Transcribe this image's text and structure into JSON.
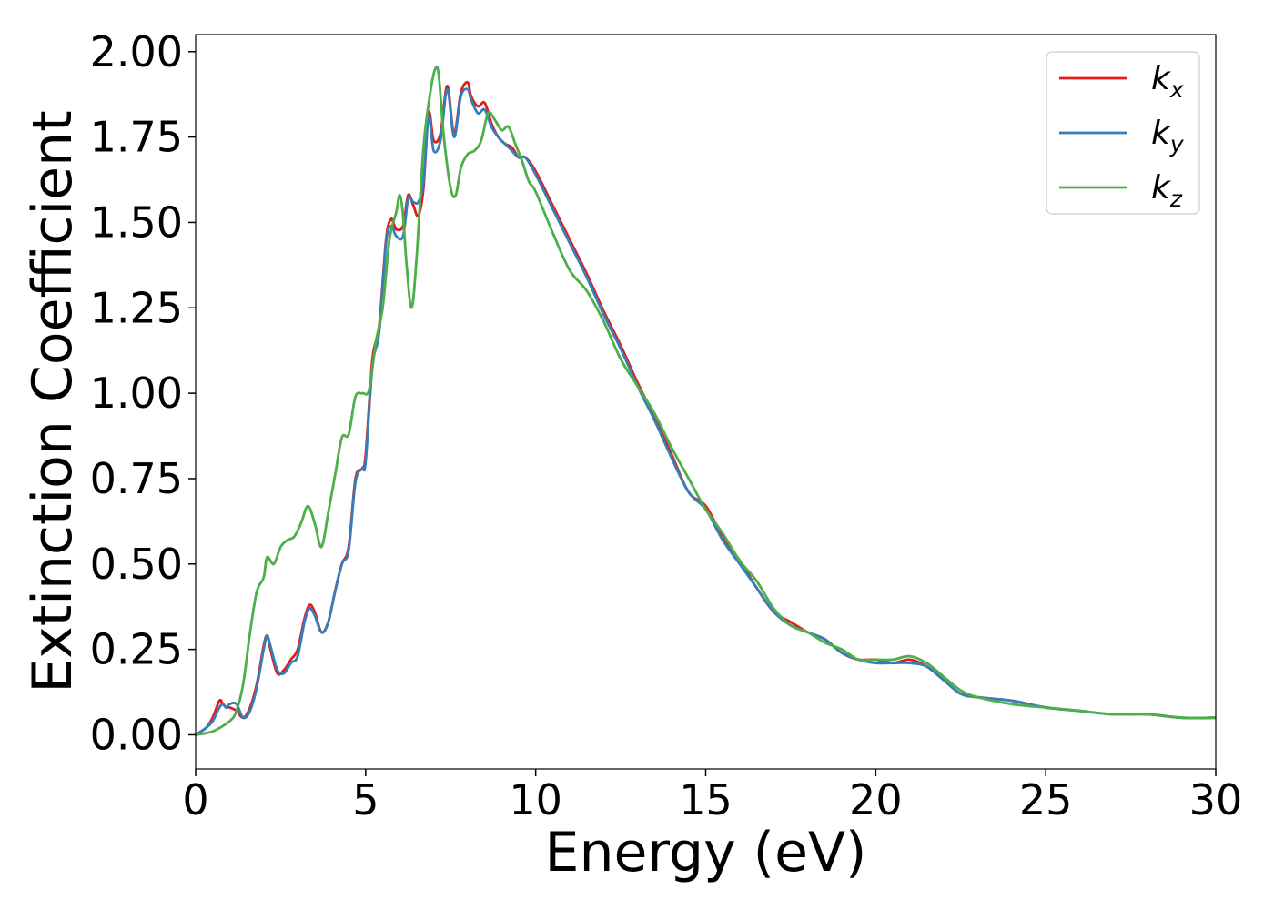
{
  "chart_data": {
    "type": "line",
    "title": "",
    "xlabel": "Energy (eV)",
    "ylabel": "Extinction Coefficient",
    "xlim": [
      0,
      30
    ],
    "ylim": [
      -0.1,
      2.05
    ],
    "xticks": [
      0,
      5,
      10,
      15,
      20,
      25,
      30
    ],
    "xtick_labels": [
      "0",
      "5",
      "10",
      "15",
      "20",
      "25",
      "30"
    ],
    "yticks": [
      0,
      0.25,
      0.5,
      0.75,
      1.0,
      1.25,
      1.5,
      1.75,
      2.0
    ],
    "ytick_labels": [
      "0.00",
      "0.25",
      "0.50",
      "0.75",
      "1.00",
      "1.25",
      "1.50",
      "1.75",
      "2.00"
    ],
    "grid": false,
    "legend_position": "top-right",
    "series": [
      {
        "name": "kx",
        "legend_base": "k",
        "legend_sub": "x",
        "color": "#e41a1c",
        "x": [
          0,
          0.3,
          0.5,
          0.7,
          0.8,
          0.9,
          1.0,
          1.2,
          1.4,
          1.6,
          1.8,
          2.0,
          2.1,
          2.2,
          2.4,
          2.6,
          2.8,
          3.0,
          3.2,
          3.35,
          3.5,
          3.7,
          3.9,
          4.1,
          4.3,
          4.5,
          4.7,
          4.9,
          5.0,
          5.2,
          5.4,
          5.6,
          5.75,
          5.9,
          6.1,
          6.25,
          6.4,
          6.55,
          6.7,
          6.85,
          7.0,
          7.2,
          7.4,
          7.6,
          7.8,
          8.0,
          8.1,
          8.3,
          8.5,
          8.7,
          8.9,
          9.1,
          9.3,
          9.5,
          9.7,
          10.0,
          10.5,
          11,
          11.5,
          12,
          12.5,
          13,
          13.5,
          14,
          14.5,
          15,
          15.5,
          16,
          16.5,
          17,
          17.5,
          18,
          18.5,
          19,
          19.5,
          20,
          20.5,
          21,
          21.5,
          22,
          22.5,
          23,
          24,
          25,
          26,
          27,
          28,
          29,
          30
        ],
        "y": [
          0.0,
          0.02,
          0.05,
          0.1,
          0.09,
          0.08,
          0.08,
          0.07,
          0.05,
          0.08,
          0.15,
          0.26,
          0.29,
          0.25,
          0.18,
          0.19,
          0.22,
          0.25,
          0.34,
          0.38,
          0.36,
          0.3,
          0.33,
          0.42,
          0.5,
          0.55,
          0.75,
          0.78,
          0.82,
          1.1,
          1.2,
          1.45,
          1.51,
          1.48,
          1.49,
          1.58,
          1.55,
          1.52,
          1.6,
          1.82,
          1.74,
          1.76,
          1.9,
          1.76,
          1.88,
          1.91,
          1.87,
          1.84,
          1.85,
          1.79,
          1.75,
          1.73,
          1.72,
          1.69,
          1.69,
          1.65,
          1.55,
          1.45,
          1.35,
          1.24,
          1.14,
          1.03,
          0.93,
          0.82,
          0.71,
          0.67,
          0.58,
          0.51,
          0.43,
          0.36,
          0.33,
          0.3,
          0.28,
          0.24,
          0.22,
          0.22,
          0.21,
          0.22,
          0.2,
          0.16,
          0.12,
          0.11,
          0.1,
          0.08,
          0.07,
          0.06,
          0.06,
          0.05,
          0.05
        ]
      },
      {
        "name": "ky",
        "legend_base": "k",
        "legend_sub": "y",
        "color": "#377eb8",
        "x": [
          0,
          0.3,
          0.5,
          0.7,
          0.8,
          0.9,
          1.0,
          1.2,
          1.4,
          1.6,
          1.8,
          2.0,
          2.1,
          2.2,
          2.4,
          2.6,
          2.8,
          3.0,
          3.2,
          3.35,
          3.5,
          3.7,
          3.9,
          4.1,
          4.3,
          4.5,
          4.7,
          4.9,
          5.0,
          5.2,
          5.4,
          5.6,
          5.75,
          5.9,
          6.1,
          6.25,
          6.4,
          6.55,
          6.7,
          6.85,
          7.0,
          7.2,
          7.4,
          7.6,
          7.8,
          8.0,
          8.1,
          8.3,
          8.5,
          8.7,
          8.9,
          9.1,
          9.3,
          9.5,
          9.7,
          10.0,
          10.5,
          11,
          11.5,
          12,
          12.5,
          13,
          13.5,
          14,
          14.5,
          15,
          15.5,
          16,
          16.5,
          17,
          17.5,
          18,
          18.5,
          19,
          19.5,
          20,
          20.5,
          21,
          21.5,
          22,
          22.5,
          23,
          24,
          25,
          26,
          27,
          28,
          29,
          30
        ],
        "y": [
          0.0,
          0.02,
          0.04,
          0.08,
          0.09,
          0.08,
          0.09,
          0.09,
          0.05,
          0.07,
          0.14,
          0.25,
          0.29,
          0.26,
          0.19,
          0.18,
          0.21,
          0.23,
          0.33,
          0.37,
          0.35,
          0.3,
          0.33,
          0.42,
          0.5,
          0.54,
          0.74,
          0.78,
          0.8,
          1.08,
          1.18,
          1.44,
          1.49,
          1.46,
          1.46,
          1.57,
          1.56,
          1.56,
          1.62,
          1.81,
          1.71,
          1.74,
          1.89,
          1.75,
          1.87,
          1.89,
          1.86,
          1.82,
          1.83,
          1.78,
          1.75,
          1.73,
          1.71,
          1.69,
          1.69,
          1.64,
          1.54,
          1.44,
          1.34,
          1.23,
          1.13,
          1.02,
          0.92,
          0.81,
          0.71,
          0.66,
          0.57,
          0.5,
          0.43,
          0.36,
          0.32,
          0.3,
          0.28,
          0.24,
          0.22,
          0.21,
          0.21,
          0.21,
          0.2,
          0.16,
          0.12,
          0.11,
          0.1,
          0.08,
          0.07,
          0.06,
          0.06,
          0.05,
          0.05
        ]
      },
      {
        "name": "kz",
        "legend_base": "k",
        "legend_sub": "z",
        "color": "#4daf4a",
        "x": [
          0,
          0.5,
          1.0,
          1.2,
          1.4,
          1.6,
          1.8,
          2.0,
          2.1,
          2.3,
          2.5,
          2.7,
          2.9,
          3.1,
          3.3,
          3.5,
          3.7,
          3.9,
          4.1,
          4.3,
          4.5,
          4.7,
          4.9,
          5.1,
          5.3,
          5.5,
          5.7,
          5.9,
          6.0,
          6.1,
          6.2,
          6.35,
          6.5,
          6.7,
          6.9,
          7.05,
          7.15,
          7.3,
          7.5,
          7.65,
          7.8,
          8.0,
          8.2,
          8.4,
          8.6,
          8.8,
          9.0,
          9.2,
          9.4,
          9.6,
          9.8,
          10.0,
          10.5,
          11,
          11.5,
          12,
          12.5,
          13,
          13.5,
          14,
          14.5,
          15,
          15.5,
          16,
          16.5,
          17,
          17.5,
          18,
          18.5,
          19,
          19.5,
          20,
          20.5,
          21,
          21.5,
          22,
          22.5,
          23,
          24,
          25,
          26,
          27,
          28,
          29,
          30
        ],
        "y": [
          0.0,
          0.01,
          0.04,
          0.07,
          0.15,
          0.3,
          0.42,
          0.46,
          0.52,
          0.5,
          0.55,
          0.57,
          0.58,
          0.62,
          0.67,
          0.62,
          0.55,
          0.65,
          0.76,
          0.87,
          0.88,
          0.99,
          1.0,
          1.01,
          1.15,
          1.25,
          1.45,
          1.53,
          1.58,
          1.52,
          1.38,
          1.25,
          1.4,
          1.72,
          1.88,
          1.95,
          1.93,
          1.75,
          1.6,
          1.58,
          1.66,
          1.7,
          1.71,
          1.74,
          1.82,
          1.8,
          1.77,
          1.78,
          1.73,
          1.68,
          1.62,
          1.59,
          1.47,
          1.36,
          1.3,
          1.21,
          1.1,
          1.02,
          0.94,
          0.84,
          0.75,
          0.66,
          0.59,
          0.51,
          0.45,
          0.37,
          0.32,
          0.3,
          0.27,
          0.25,
          0.22,
          0.22,
          0.22,
          0.23,
          0.21,
          0.17,
          0.13,
          0.11,
          0.09,
          0.08,
          0.07,
          0.06,
          0.06,
          0.05,
          0.05
        ]
      }
    ]
  }
}
